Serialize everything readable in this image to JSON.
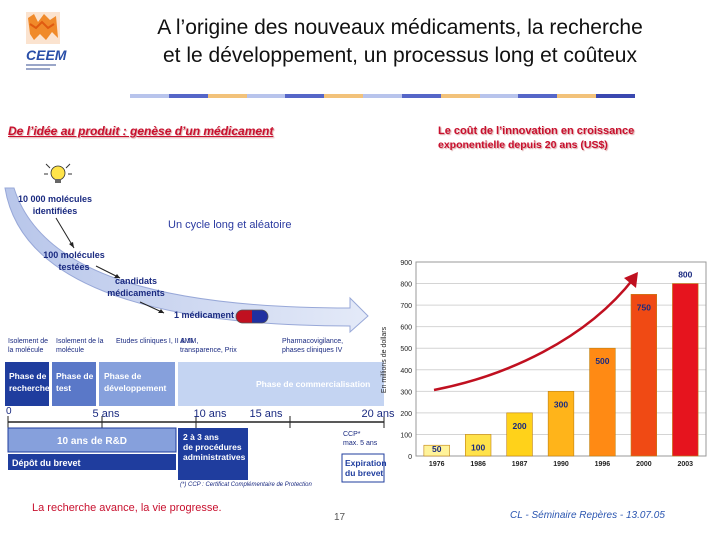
{
  "title": {
    "line1": "A l’origine des nouveaux médicaments, la recherche",
    "line2": "et le développement, un processus long et coûteux"
  },
  "logo": {
    "text": "CEEM"
  },
  "left_heading": "De l’idée au produit : genèse d’un médicament",
  "right_heading": {
    "line1": "Le coût de l’innovation en croissance",
    "line2": "exponentielle depuis 20 ans (US$)"
  },
  "process": {
    "funnel_1": "10 000 molécules",
    "funnel_1b": "identifiées",
    "funnel_2": "100 molécules",
    "funnel_2b": "testées",
    "funnel_3": "candidats",
    "funnel_3b": "médicaments",
    "funnel_4": "1 médicament",
    "cycle_label": "Un cycle long et aléatoire",
    "mini_labels": [
      "Isolement de\nla molécule",
      "Isolement de la\nmolécule",
      "Etudes cliniques I, II & III",
      "AMM,\ntransparence, Prix",
      "Pharmacovigilance,\nphases cliniques IV"
    ],
    "phases": [
      "Phase de\nrecherche",
      "Phase de\ntest",
      "Phase de\ndéveloppement",
      "Phase de commercialisation"
    ],
    "timeline": [
      "0",
      "5 ans",
      "10 ans",
      "15 ans",
      "20 ans"
    ],
    "rd_label": "10 ans de R&D",
    "admin_label": "2 à 3 ans\nde procédures\nadministratives",
    "ccp_label": "CCP*\nmax. 5 ans",
    "depot": "Dépôt du brevet",
    "expiration": "Expiration\ndu brevet",
    "footnote": "(*) CCP : Certificat Complémentaire de Protection"
  },
  "chart_data": {
    "type": "bar",
    "title": "Le coût de l’innovation en croissance exponentielle depuis 20 ans (US$)",
    "ylabel": "En millions de dollars",
    "xlabel": "",
    "ylim": [
      0,
      900
    ],
    "yticks": [
      0,
      100,
      200,
      300,
      400,
      500,
      600,
      700,
      800,
      900
    ],
    "categories": [
      "1976",
      "1986",
      "1987",
      "1990",
      "1996",
      "2000",
      "2003"
    ],
    "values": [
      50,
      100,
      200,
      300,
      500,
      750,
      800
    ],
    "colors": [
      "#fff39a",
      "#ffe24a",
      "#ffd21a",
      "#ffb41a",
      "#ff8a14",
      "#f04a14",
      "#e6141e"
    ],
    "trend_arrow": true
  },
  "caption": "La recherche avance, la vie progresse.",
  "page_number": "17",
  "footer": "CL - Séminaire Repères - 13.07.05"
}
